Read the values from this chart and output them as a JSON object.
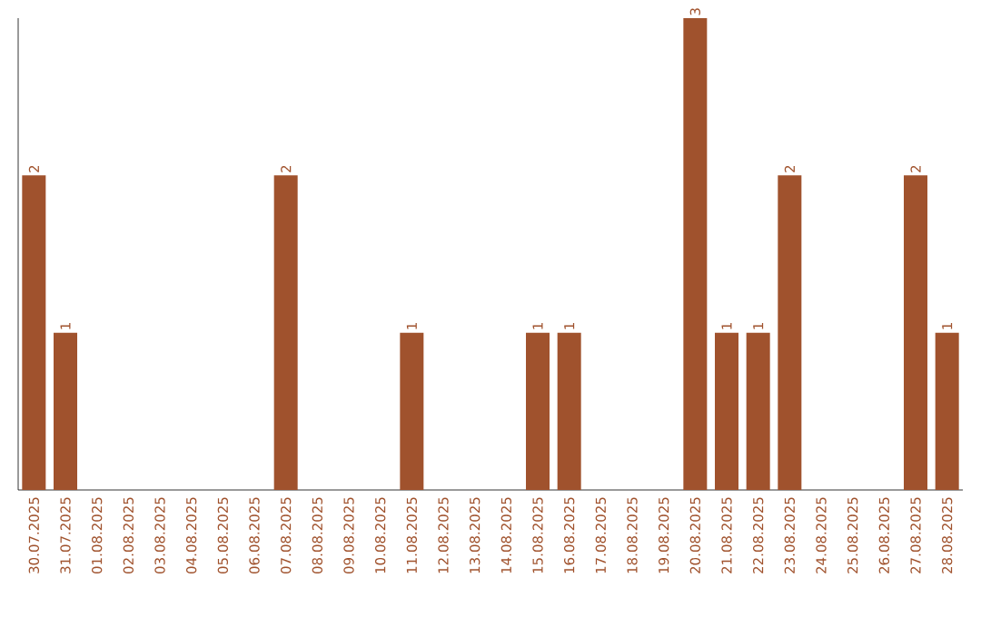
{
  "chart_data": {
    "type": "bar",
    "categories": [
      "30.07.2025",
      "31.07.2025",
      "01.08.2025",
      "02.08.2025",
      "03.08.2025",
      "04.08.2025",
      "05.08.2025",
      "06.08.2025",
      "07.08.2025",
      "08.08.2025",
      "09.08.2025",
      "10.08.2025",
      "11.08.2025",
      "12.08.2025",
      "13.08.2025",
      "14.08.2025",
      "15.08.2025",
      "16.08.2025",
      "17.08.2025",
      "18.08.2025",
      "19.08.2025",
      "20.08.2025",
      "21.08.2025",
      "22.08.2025",
      "23.08.2025",
      "24.08.2025",
      "25.08.2025",
      "26.08.2025",
      "27.08.2025",
      "28.08.2025"
    ],
    "values": [
      2,
      1,
      0,
      0,
      0,
      0,
      0,
      0,
      2,
      0,
      0,
      0,
      1,
      0,
      0,
      0,
      1,
      1,
      0,
      0,
      0,
      3,
      1,
      1,
      2,
      0,
      0,
      0,
      2,
      1
    ],
    "value_labels": [
      "2",
      "1",
      null,
      null,
      null,
      null,
      null,
      null,
      "2",
      null,
      null,
      null,
      "1",
      null,
      null,
      null,
      "1",
      "1",
      null,
      null,
      null,
      "3",
      "1",
      "1",
      "2",
      null,
      null,
      null,
      "2",
      "1"
    ],
    "color": "#a0522d"
  }
}
